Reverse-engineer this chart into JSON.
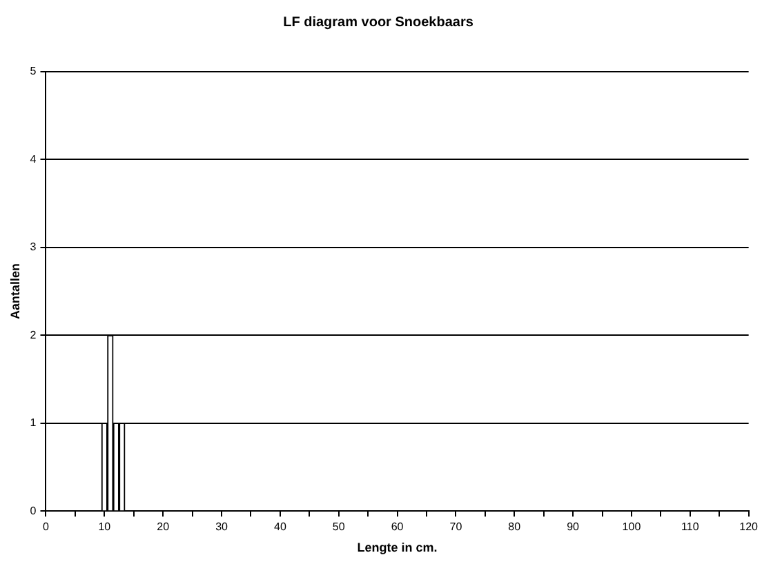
{
  "chart_data": {
    "type": "bar",
    "title": "LF diagram voor Snoekbaars",
    "xlabel": "Lengte in cm.",
    "ylabel": "Aantallen",
    "x": [
      10,
      11,
      12,
      13
    ],
    "values": [
      1,
      2,
      1,
      1
    ],
    "color": "#ffffff",
    "xlim": [
      0,
      120
    ],
    "xticks": [
      0,
      {
        "value": 5,
        "label": null
      },
      10,
      {
        "value": 15,
        "label": null
      },
      20,
      {
        "value": 25,
        "label": null
      },
      30,
      {
        "value": 35,
        "label": null
      },
      40,
      {
        "value": 45,
        "label": null
      },
      50,
      {
        "value": 55,
        "label": null
      },
      60,
      {
        "value": 65,
        "label": null
      },
      70,
      {
        "value": 75,
        "label": null
      },
      80,
      {
        "value": 85,
        "label": null
      },
      90,
      {
        "value": 95,
        "label": null
      },
      100,
      {
        "value": 105,
        "label": null
      },
      110,
      {
        "value": 115,
        "label": null
      },
      120
    ],
    "ylim": [
      0,
      5
    ],
    "yticks": [
      0,
      1,
      2,
      3,
      4,
      5
    ],
    "grid": "y",
    "legend": false
  }
}
